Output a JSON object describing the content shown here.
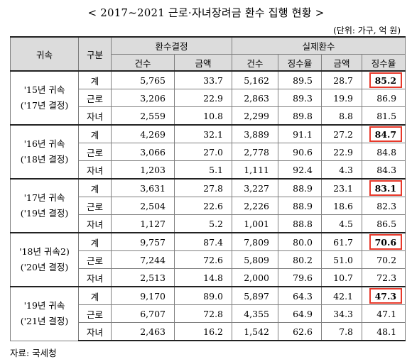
{
  "title": "< 2017~2021 근로·자녀장려금 환수 집행 현황 >",
  "unit": "(단위: 가구, 억 원)",
  "headers": {
    "category": "귀속",
    "type": "구분",
    "decision": "환수결정",
    "actual": "실제환수",
    "count": "건수",
    "amount": "금액",
    "rate": "징수율"
  },
  "groups": [
    {
      "line1": "'15년 귀속",
      "line2": "('17년 결정)",
      "rows": [
        {
          "type": "계",
          "dec_count": "5,765",
          "dec_amount": "33.7",
          "act_count": "5,162",
          "act_rate": "89.5",
          "act_amount": "28.7",
          "collect_rate": "85.2"
        },
        {
          "type": "근로",
          "dec_count": "3,206",
          "dec_amount": "22.9",
          "act_count": "2,863",
          "act_rate": "89.3",
          "act_amount": "19.9",
          "collect_rate": "86.9"
        },
        {
          "type": "자녀",
          "dec_count": "2,559",
          "dec_amount": "10.8",
          "act_count": "2,299",
          "act_rate": "89.8",
          "act_amount": "8.8",
          "collect_rate": "81.5"
        }
      ]
    },
    {
      "line1": "'16년 귀속",
      "line2": "('18년 결정)",
      "rows": [
        {
          "type": "계",
          "dec_count": "4,269",
          "dec_amount": "32.1",
          "act_count": "3,889",
          "act_rate": "91.1",
          "act_amount": "27.2",
          "collect_rate": "84.7"
        },
        {
          "type": "근로",
          "dec_count": "3,066",
          "dec_amount": "27.0",
          "act_count": "2,778",
          "act_rate": "90.6",
          "act_amount": "22.9",
          "collect_rate": "84.8"
        },
        {
          "type": "자녀",
          "dec_count": "1,203",
          "dec_amount": "5.1",
          "act_count": "1,111",
          "act_rate": "92.4",
          "act_amount": "4.3",
          "collect_rate": "84.3"
        }
      ]
    },
    {
      "line1": "'17년 귀속",
      "line2": "('19년 결정)",
      "rows": [
        {
          "type": "계",
          "dec_count": "3,631",
          "dec_amount": "27.8",
          "act_count": "3,227",
          "act_rate": "88.9",
          "act_amount": "23.1",
          "collect_rate": "83.1"
        },
        {
          "type": "근로",
          "dec_count": "2,504",
          "dec_amount": "22.6",
          "act_count": "2,226",
          "act_rate": "88.9",
          "act_amount": "18.6",
          "collect_rate": "82.3"
        },
        {
          "type": "자녀",
          "dec_count": "1,127",
          "dec_amount": "5.2",
          "act_count": "1,001",
          "act_rate": "88.8",
          "act_amount": "4.5",
          "collect_rate": "86.5"
        }
      ]
    },
    {
      "line1": "'18년 귀속2)",
      "line2": "('20년 결정)",
      "rows": [
        {
          "type": "계",
          "dec_count": "9,757",
          "dec_amount": "87.4",
          "act_count": "7,809",
          "act_rate": "80.0",
          "act_amount": "61.7",
          "collect_rate": "70.6"
        },
        {
          "type": "근로",
          "dec_count": "7,244",
          "dec_amount": "72.6",
          "act_count": "5,809",
          "act_rate": "80.2",
          "act_amount": "51.0",
          "collect_rate": "70.2"
        },
        {
          "type": "자녀",
          "dec_count": "2,513",
          "dec_amount": "14.8",
          "act_count": "2,000",
          "act_rate": "79.6",
          "act_amount": "10.7",
          "collect_rate": "72.3"
        }
      ]
    },
    {
      "line1": "'19년 귀속",
      "line2": "('21년 결정)",
      "rows": [
        {
          "type": "계",
          "dec_count": "9,170",
          "dec_amount": "89.0",
          "act_count": "5,897",
          "act_rate": "64.3",
          "act_amount": "42.1",
          "collect_rate": "47.3"
        },
        {
          "type": "근로",
          "dec_count": "6,707",
          "dec_amount": "72.8",
          "act_count": "4,355",
          "act_rate": "64.9",
          "act_amount": "34.3",
          "collect_rate": "47.1"
        },
        {
          "type": "자녀",
          "dec_count": "2,463",
          "dec_amount": "16.2",
          "act_count": "1,542",
          "act_rate": "62.6",
          "act_amount": "7.8",
          "collect_rate": "48.1"
        }
      ]
    }
  ],
  "highlight_color": "#e8392b",
  "header_bg": "#dcdcdc",
  "source": "자료: 국세청"
}
